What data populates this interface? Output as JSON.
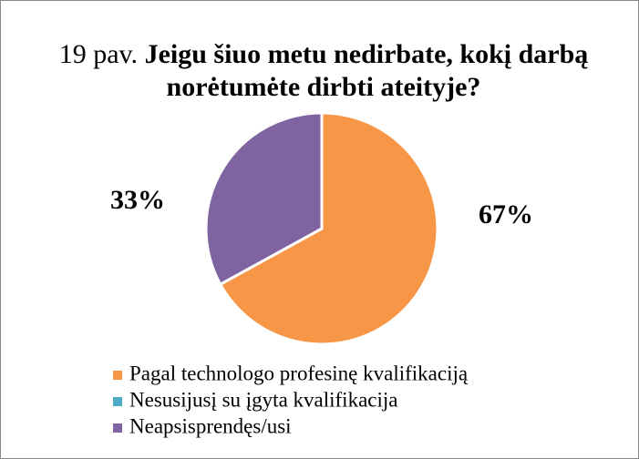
{
  "chart_data": {
    "type": "pie",
    "figure_label": "19 pav.",
    "title": "Jeigu šiuo metu nedirbate, kokį darbą norėtumėte dirbti ateityje?",
    "categories": [
      "Pagal technologo profesinę kvalifikaciją",
      "Nesusijusį su įgyta kvalifikacija",
      "Neapsisprendęs/usi"
    ],
    "values": [
      67,
      0,
      33
    ],
    "value_labels": [
      "67%",
      null,
      "33%"
    ],
    "colors": [
      "#F79646",
      "#4BACC6",
      "#8064A2"
    ],
    "legend": "bottom"
  }
}
